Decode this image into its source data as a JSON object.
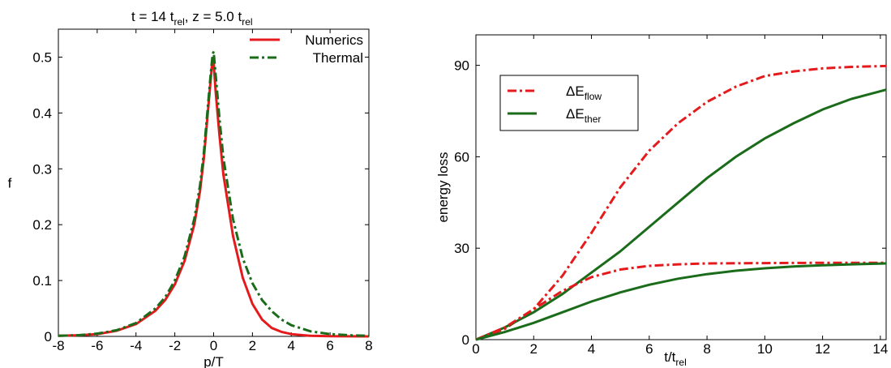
{
  "chart_data": [
    {
      "type": "line",
      "title": {
        "main": "t = 14 t",
        "sub1": "rel",
        "mid": ", z = 5.0 t",
        "sub2": "rel"
      },
      "xlabel": "p/T",
      "ylabel": "f",
      "xlim": [
        -8,
        8
      ],
      "ylim": [
        0,
        0.55
      ],
      "xticks": [
        "-8",
        "-6",
        "-4",
        "-2",
        "0",
        "2",
        "4",
        "6",
        "8"
      ],
      "yticks": [
        "0",
        "0.1",
        "0.2",
        "0.3",
        "0.4",
        "0.5"
      ],
      "legend_position": "top-right",
      "series": [
        {
          "name": "Numerics",
          "color": "#e41a1c",
          "style": "solid",
          "points": [
            [
              -8,
              0.001
            ],
            [
              -7,
              0.002
            ],
            [
              -6,
              0.004
            ],
            [
              -5,
              0.01
            ],
            [
              -4,
              0.022
            ],
            [
              -3,
              0.046
            ],
            [
              -2.5,
              0.065
            ],
            [
              -2,
              0.093
            ],
            [
              -1.5,
              0.135
            ],
            [
              -1,
              0.2
            ],
            [
              -0.7,
              0.26
            ],
            [
              -0.5,
              0.32
            ],
            [
              -0.3,
              0.4
            ],
            [
              -0.15,
              0.46
            ],
            [
              -0.05,
              0.5
            ],
            [
              0,
              0.49
            ],
            [
              0.1,
              0.44
            ],
            [
              0.3,
              0.36
            ],
            [
              0.5,
              0.29
            ],
            [
              1,
              0.18
            ],
            [
              1.5,
              0.105
            ],
            [
              2,
              0.058
            ],
            [
              2.5,
              0.03
            ],
            [
              3,
              0.015
            ],
            [
              3.5,
              0.008
            ],
            [
              4,
              0.004
            ],
            [
              5,
              0.001
            ],
            [
              6,
              0.0003
            ],
            [
              8,
              0
            ]
          ]
        },
        {
          "name": "Thermal",
          "color": "#1a6b1a",
          "style": "dashdot",
          "points": [
            [
              -8,
              0.001
            ],
            [
              -7,
              0.002
            ],
            [
              -6,
              0.005
            ],
            [
              -5,
              0.011
            ],
            [
              -4,
              0.024
            ],
            [
              -3,
              0.05
            ],
            [
              -2.5,
              0.07
            ],
            [
              -2,
              0.1
            ],
            [
              -1.5,
              0.143
            ],
            [
              -1,
              0.21
            ],
            [
              -0.7,
              0.27
            ],
            [
              -0.5,
              0.33
            ],
            [
              -0.3,
              0.41
            ],
            [
              -0.15,
              0.47
            ],
            [
              -0.05,
              0.505
            ],
            [
              0,
              0.51
            ],
            [
              0.1,
              0.47
            ],
            [
              0.3,
              0.39
            ],
            [
              0.5,
              0.32
            ],
            [
              1,
              0.21
            ],
            [
              1.5,
              0.14
            ],
            [
              2,
              0.095
            ],
            [
              2.5,
              0.065
            ],
            [
              3,
              0.045
            ],
            [
              3.5,
              0.03
            ],
            [
              4,
              0.02
            ],
            [
              5,
              0.009
            ],
            [
              6,
              0.004
            ],
            [
              7,
              0.002
            ],
            [
              8,
              0.001
            ]
          ]
        }
      ]
    },
    {
      "type": "line",
      "title": "",
      "xlabel": {
        "main": "t/t",
        "sub": "rel"
      },
      "ylabel": "energy loss",
      "xlim": [
        0,
        14.2
      ],
      "ylim": [
        0,
        100
      ],
      "xticks": [
        "0",
        "2",
        "4",
        "6",
        "8",
        "10",
        "12",
        "14"
      ],
      "yticks": [
        "0",
        "30",
        "60",
        "90"
      ],
      "legend_position": "upper-left",
      "legend": [
        {
          "name": "ΔE",
          "sub": "flow",
          "color": "#e41a1c",
          "style": "dashdot"
        },
        {
          "name": "ΔE",
          "sub": "ther",
          "color": "#1a6b1a",
          "style": "solid"
        }
      ],
      "series": [
        {
          "name": "ΔE_flow",
          "color": "#e41a1c",
          "style": "dashdot",
          "points": [
            [
              0,
              0
            ],
            [
              1,
              3.5
            ],
            [
              2,
              10
            ],
            [
              3,
              21
            ],
            [
              4,
              35
            ],
            [
              5,
              50
            ],
            [
              6,
              62
            ],
            [
              7,
              71
            ],
            [
              8,
              78
            ],
            [
              9,
              83
            ],
            [
              10,
              86.5
            ],
            [
              11,
              88
            ],
            [
              12,
              89
            ],
            [
              13,
              89.5
            ],
            [
              14.2,
              89.8
            ]
          ]
        },
        {
          "name": "ΔE_ther",
          "color": "#1a6b1a",
          "style": "solid",
          "points": [
            [
              0,
              0
            ],
            [
              1,
              4
            ],
            [
              2,
              9
            ],
            [
              3,
              15
            ],
            [
              4,
              22
            ],
            [
              5,
              29
            ],
            [
              6,
              37
            ],
            [
              7,
              45
            ],
            [
              8,
              53
            ],
            [
              9,
              60
            ],
            [
              10,
              66
            ],
            [
              11,
              71
            ],
            [
              12,
              75.5
            ],
            [
              13,
              79
            ],
            [
              14.2,
              82
            ]
          ]
        },
        {
          "name": "ΔE_flow",
          "color": "#e41a1c",
          "style": "dashdot",
          "points": [
            [
              0,
              0
            ],
            [
              1,
              4
            ],
            [
              2,
              10
            ],
            [
              3,
              16
            ],
            [
              4,
              20.5
            ],
            [
              5,
              23
            ],
            [
              6,
              24.2
            ],
            [
              7,
              24.7
            ],
            [
              8,
              25
            ],
            [
              10,
              25.1
            ],
            [
              12,
              25.2
            ],
            [
              14.2,
              25.2
            ]
          ]
        },
        {
          "name": "ΔE_ther",
          "color": "#1a6b1a",
          "style": "solid",
          "points": [
            [
              0,
              0
            ],
            [
              1,
              2.5
            ],
            [
              2,
              5.5
            ],
            [
              3,
              9
            ],
            [
              4,
              12.5
            ],
            [
              5,
              15.5
            ],
            [
              6,
              18
            ],
            [
              7,
              20
            ],
            [
              8,
              21.5
            ],
            [
              9,
              22.6
            ],
            [
              10,
              23.4
            ],
            [
              11,
              24
            ],
            [
              12,
              24.4
            ],
            [
              13,
              24.7
            ],
            [
              14.2,
              25
            ]
          ]
        }
      ]
    }
  ]
}
